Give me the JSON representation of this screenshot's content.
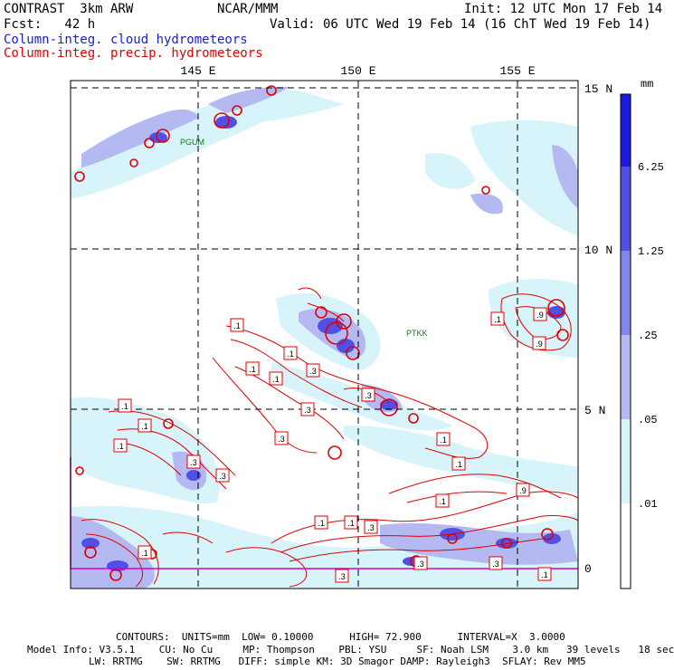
{
  "header": {
    "model": "CONTRAST  3km ARW",
    "org": "NCAR/MMM",
    "init": "Init: 12 UTC Mon 17 Feb 14",
    "fcst": "Fcst:   42 h",
    "valid": "Valid: 06 UTC Wed 19 Feb 14 (16 ChT Wed 19 Feb 14)",
    "field1": "Column-integ. cloud hydrometeors",
    "field2": "Column-integ. precip. hydrometeors"
  },
  "map": {
    "lon_labels": [
      "145 E",
      "150 E",
      "155 E"
    ],
    "lat_labels": [
      "15 N",
      "10 N",
      "5 N",
      "0"
    ],
    "stations": [
      "PGUM",
      "PTKK"
    ],
    "contour_labels": [
      ".1",
      ".1",
      ".1",
      ".1",
      ".1",
      ".1",
      ".1",
      ".1",
      ".1",
      ".1",
      ".1",
      ".1",
      ".1",
      ".1",
      ".1",
      ".3",
      ".3",
      ".3",
      ".3",
      ".3",
      ".3",
      ".3",
      ".3",
      ".3",
      ".3",
      ".9",
      ".9",
      ".9"
    ]
  },
  "legend": {
    "unit": "mm",
    "levels": [
      "6.25",
      "1.25",
      ".25",
      ".05",
      ".01"
    ],
    "colors": [
      "#1c1ce0",
      "#5050e6",
      "#7f87ec",
      "#b4b9f2",
      "#d8f4fb",
      "#ffffff"
    ]
  },
  "footer": {
    "contours": "CONTOURS:  UNITS=mm  LOW= 0.10000      HIGH= 72.900      INTERVAL=X  3.0000",
    "info1": "Model Info: V3.5.1    CU: No Cu     MP: Thompson    PBL: YSU     SF: Noah LSM    3.0 km   39 levels   18 sec",
    "info2": "LW: RRTMG    SW: RRTMG   DIFF: simple KM: 3D Smagor DAMP: Rayleigh3  SFLAY: Rev MM5"
  }
}
